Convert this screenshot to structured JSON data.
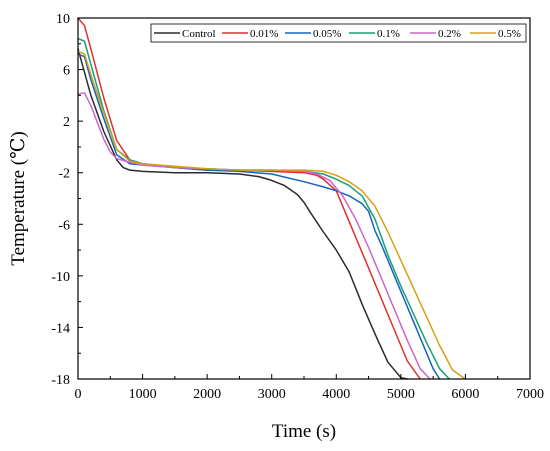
{
  "chart_data": {
    "type": "line",
    "title": "",
    "xlabel": "Time (s)",
    "ylabel": "Temperature (℃)",
    "xlim": [
      0,
      7000
    ],
    "ylim": [
      -18,
      10
    ],
    "xticks": [
      0,
      1000,
      2000,
      3000,
      4000,
      5000,
      6000,
      7000
    ],
    "yticks": [
      10,
      6,
      2,
      -2,
      -6,
      -10,
      -14,
      -18
    ],
    "grid": false,
    "legend_position": "top-right",
    "series": [
      {
        "name": "Control",
        "color": "#2b2b2b",
        "x": [
          0,
          200,
          400,
          600,
          700,
          800,
          1000,
          1500,
          2000,
          2500,
          2800,
          3000,
          3200,
          3400,
          3500,
          3600,
          3800,
          4000,
          4200,
          4400,
          4600,
          4800,
          5000,
          5100
        ],
        "y": [
          7.6,
          4.0,
          1.2,
          -1.0,
          -1.6,
          -1.8,
          -1.9,
          -2.0,
          -2.0,
          -2.1,
          -2.3,
          -2.6,
          -3.0,
          -3.7,
          -4.3,
          -5.1,
          -6.6,
          -8.0,
          -9.7,
          -12.2,
          -14.5,
          -16.7,
          -17.9,
          -18.0
        ]
      },
      {
        "name": "0.01%",
        "color": "#e03030",
        "x": [
          0,
          100,
          200,
          400,
          600,
          800,
          1000,
          1500,
          2000,
          2500,
          3000,
          3500,
          3700,
          3800,
          4000,
          4100,
          4300,
          4500,
          4700,
          4900,
          5100,
          5300
        ],
        "y": [
          10.0,
          9.4,
          7.6,
          3.8,
          0.5,
          -1.0,
          -1.3,
          -1.6,
          -1.8,
          -1.8,
          -1.9,
          -2.0,
          -2.2,
          -2.5,
          -3.4,
          -4.6,
          -7.0,
          -9.4,
          -11.8,
          -14.2,
          -16.6,
          -18.0
        ]
      },
      {
        "name": "0.05%",
        "color": "#1565c0",
        "x": [
          0,
          100,
          200,
          400,
          600,
          800,
          1000,
          1500,
          2000,
          2500,
          3000,
          3500,
          3800,
          4000,
          4200,
          4400,
          4500,
          4600,
          4700,
          4900,
          5100,
          5300,
          5500,
          5600
        ],
        "y": [
          7.2,
          7.0,
          5.2,
          2.2,
          -0.6,
          -1.3,
          -1.4,
          -1.6,
          -1.8,
          -1.9,
          -2.1,
          -2.7,
          -3.1,
          -3.4,
          -3.8,
          -4.4,
          -5.0,
          -6.5,
          -7.6,
          -10.0,
          -12.4,
          -14.8,
          -17.2,
          -18.0
        ]
      },
      {
        "name": "0.1%",
        "color": "#1a9e77",
        "x": [
          0,
          100,
          200,
          400,
          600,
          800,
          1000,
          1500,
          2000,
          2500,
          3000,
          3500,
          3800,
          4000,
          4200,
          4400,
          4600,
          4800,
          5000,
          5200,
          5400,
          5600,
          5750
        ],
        "y": [
          8.4,
          8.2,
          6.4,
          2.8,
          -0.2,
          -1.0,
          -1.3,
          -1.6,
          -1.7,
          -1.8,
          -1.8,
          -1.9,
          -2.1,
          -2.5,
          -3.0,
          -3.8,
          -5.6,
          -8.4,
          -10.8,
          -13.0,
          -15.2,
          -17.2,
          -18.0
        ]
      },
      {
        "name": "0.2%",
        "color": "#cc66cc",
        "x": [
          0,
          100,
          200,
          400,
          500,
          600,
          800,
          1000,
          1500,
          2000,
          2500,
          3000,
          3500,
          3700,
          3900,
          4100,
          4300,
          4500,
          4700,
          4900,
          5100,
          5300,
          5450
        ],
        "y": [
          4.1,
          4.2,
          3.2,
          0.6,
          -0.4,
          -0.9,
          -1.2,
          -1.4,
          -1.6,
          -1.7,
          -1.8,
          -1.8,
          -1.9,
          -2.1,
          -2.6,
          -3.8,
          -5.6,
          -7.8,
          -10.2,
          -12.6,
          -15.0,
          -17.2,
          -18.0
        ]
      },
      {
        "name": "0.5%",
        "color": "#d4a017",
        "x": [
          0,
          100,
          200,
          400,
          600,
          800,
          1000,
          1500,
          2000,
          2500,
          3000,
          3500,
          3800,
          4000,
          4200,
          4400,
          4600,
          4800,
          5000,
          5200,
          5400,
          5600,
          5800,
          6000
        ],
        "y": [
          7.4,
          7.2,
          5.6,
          2.6,
          -0.2,
          -1.1,
          -1.3,
          -1.5,
          -1.7,
          -1.8,
          -1.8,
          -1.8,
          -1.9,
          -2.2,
          -2.7,
          -3.4,
          -4.6,
          -6.6,
          -8.8,
          -11.0,
          -13.2,
          -15.4,
          -17.3,
          -18.0
        ]
      }
    ]
  }
}
